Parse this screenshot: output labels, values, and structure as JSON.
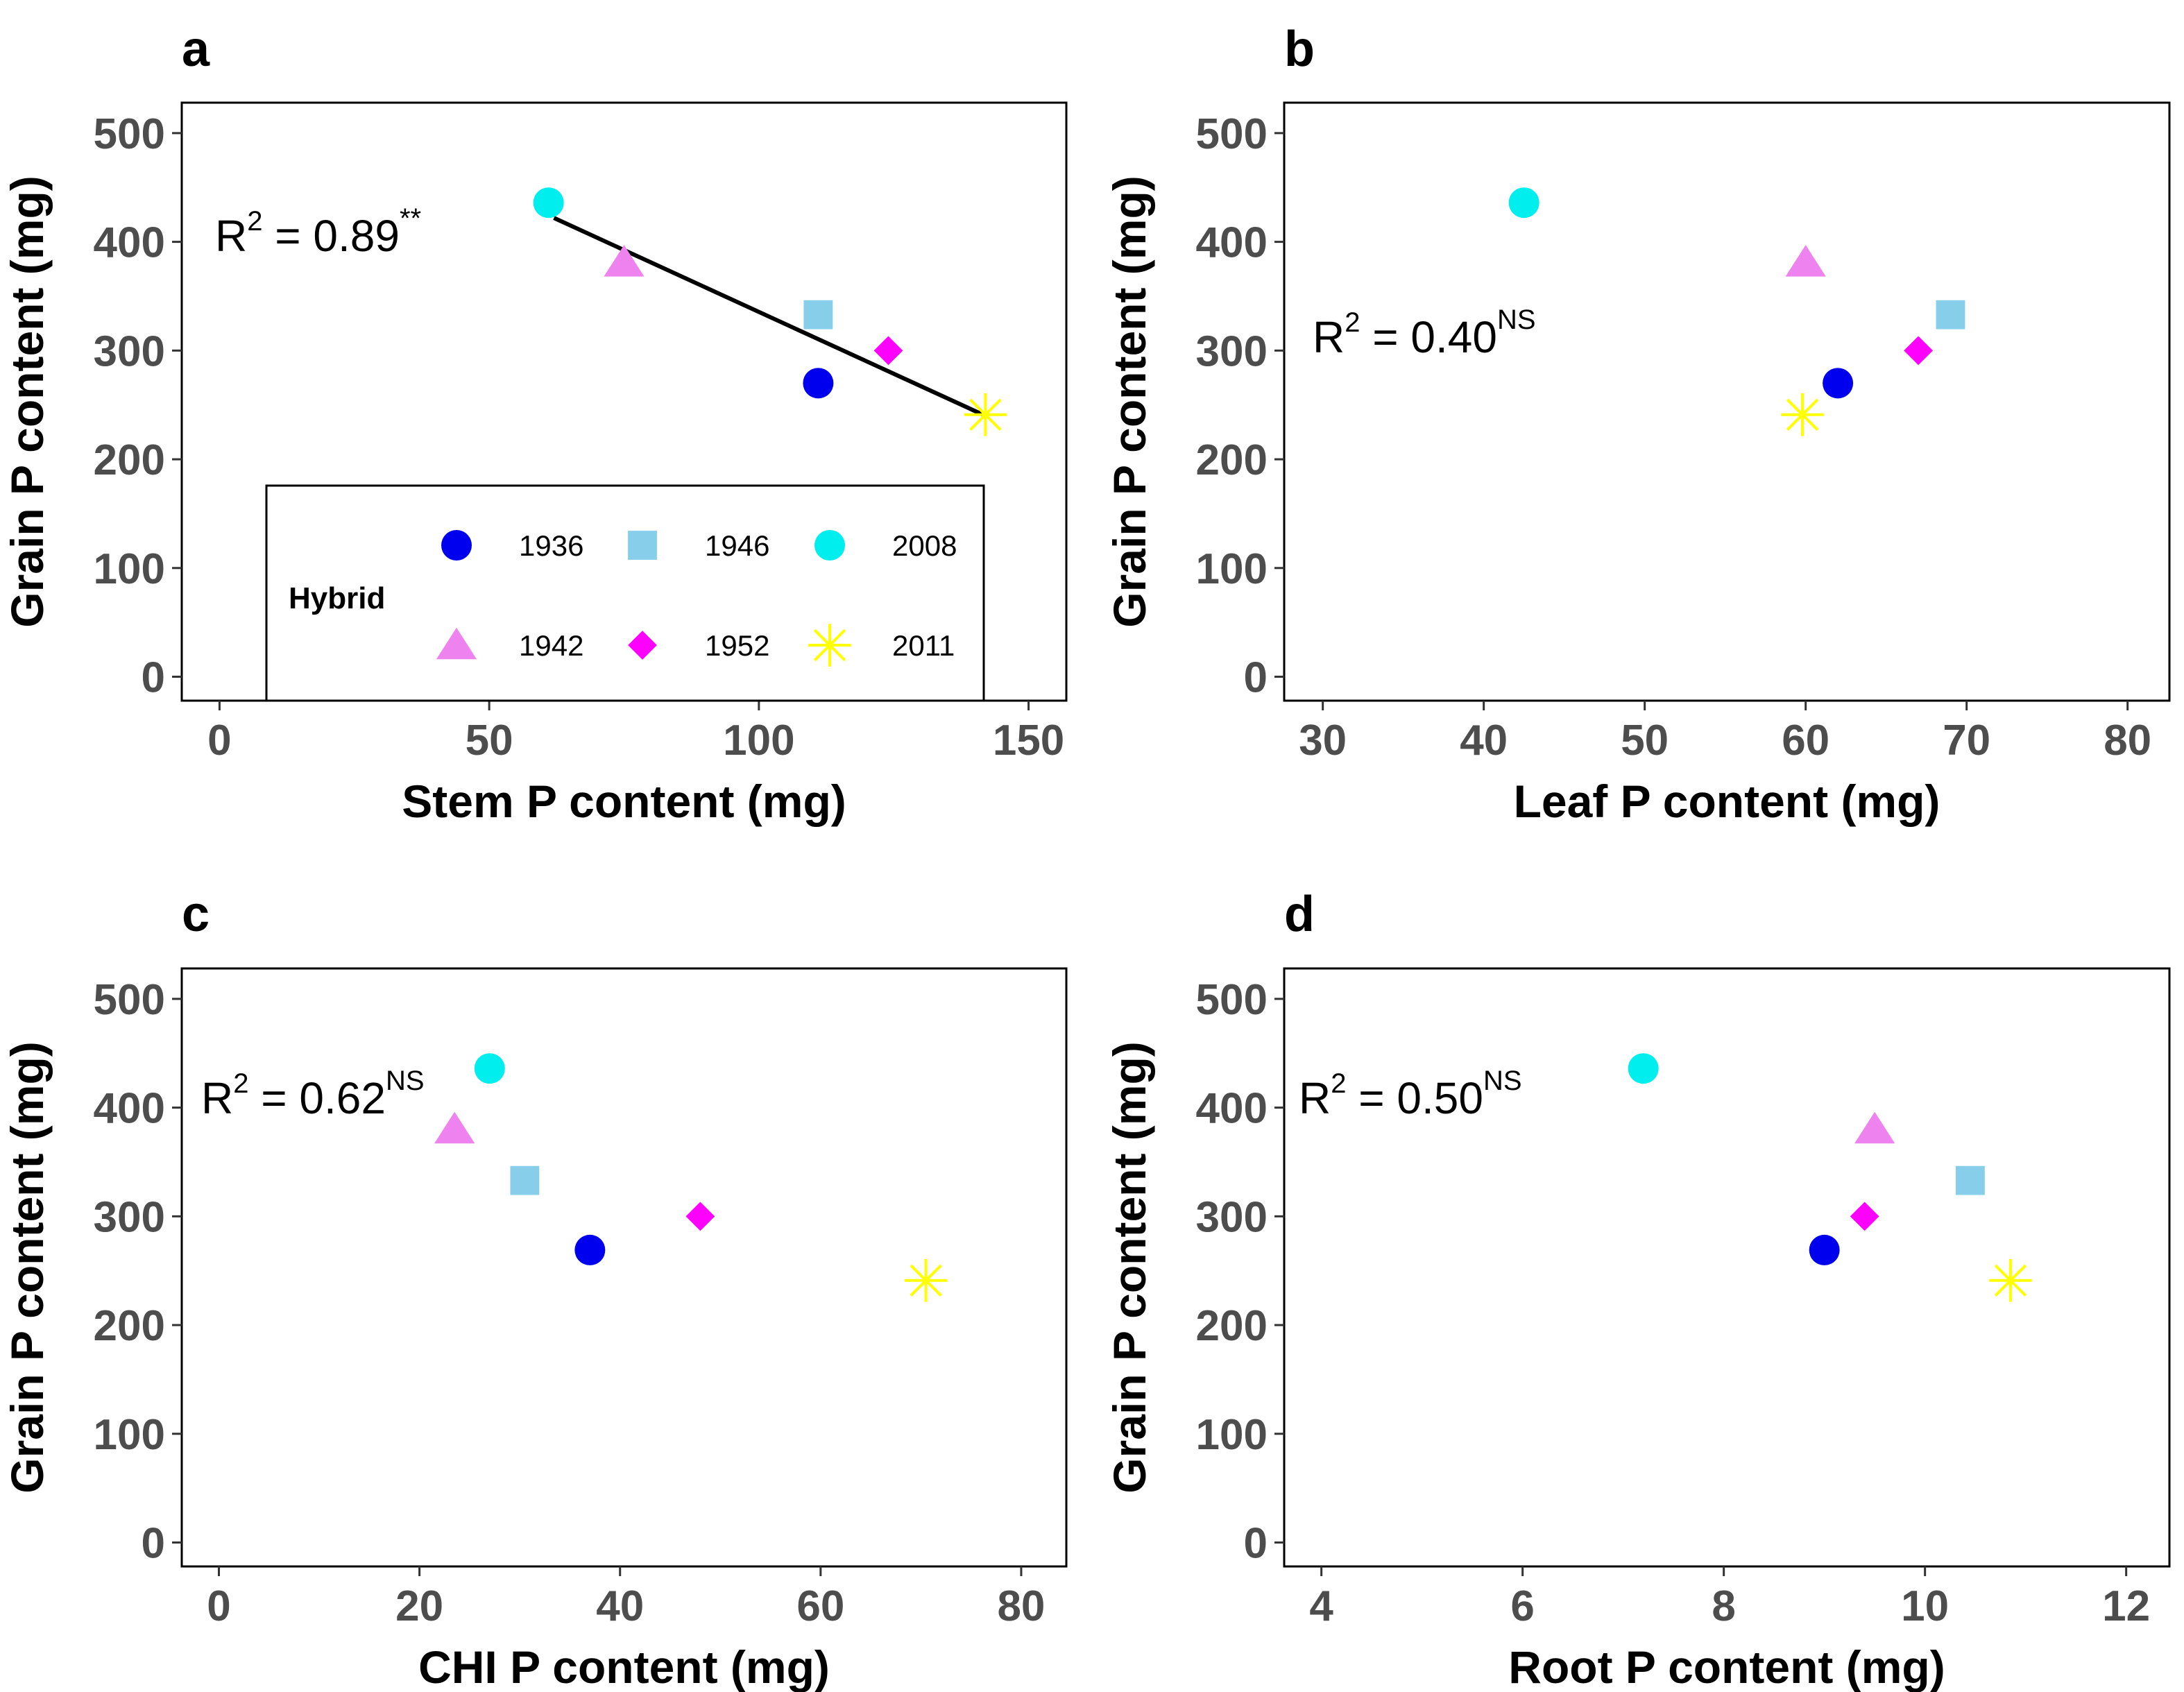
{
  "legend": {
    "title": "Hybrid",
    "entries": [
      {
        "year": "1936",
        "color": "#0000ee",
        "shape": "circle"
      },
      {
        "year": "1946",
        "color": "#87ceeb",
        "shape": "square"
      },
      {
        "year": "2008",
        "color": "#00eeee",
        "shape": "circle"
      },
      {
        "year": "1942",
        "color": "#ee82ee",
        "shape": "triangle"
      },
      {
        "year": "1952",
        "color": "#ff00ff",
        "shape": "diamond"
      },
      {
        "year": "2011",
        "color": "#ffff00",
        "shape": "asterisk"
      }
    ]
  },
  "chart_data": [
    {
      "type": "scatter",
      "panel": "a",
      "xlabel": "Stem P content (mg)",
      "ylabel": "Grain P content (mg)",
      "xlim": [
        -7,
        157
      ],
      "ylim": [
        -22,
        528
      ],
      "xticks": [
        0,
        50,
        100,
        150
      ],
      "yticks": [
        0,
        100,
        200,
        300,
        400,
        500
      ],
      "annotation": {
        "text": "R",
        "sup1": "2",
        "value": " = 0.89",
        "sup2": "**"
      },
      "regression": {
        "x": [
          62,
          142
        ],
        "y": [
          422,
          240
        ]
      },
      "points": [
        {
          "hybrid": "1936",
          "x": 111,
          "y": 270
        },
        {
          "hybrid": "1942",
          "x": 75,
          "y": 381
        },
        {
          "hybrid": "1946",
          "x": 111,
          "y": 333
        },
        {
          "hybrid": "1952",
          "x": 124,
          "y": 300
        },
        {
          "hybrid": "2008",
          "x": 61,
          "y": 436
        },
        {
          "hybrid": "2011",
          "x": 142,
          "y": 241
        }
      ],
      "show_legend": true
    },
    {
      "type": "scatter",
      "panel": "b",
      "xlabel": "Leaf P content (mg)",
      "ylabel": "Grain P content (mg)",
      "xlim": [
        27.6,
        82.6
      ],
      "ylim": [
        -22,
        528
      ],
      "xticks": [
        30,
        40,
        50,
        60,
        70,
        80
      ],
      "yticks": [
        0,
        100,
        200,
        300,
        400,
        500
      ],
      "annotation": {
        "text": "R",
        "sup1": "2",
        "value": " = 0.40",
        "sup2": "NS"
      },
      "points": [
        {
          "hybrid": "1936",
          "x": 62,
          "y": 270
        },
        {
          "hybrid": "1942",
          "x": 60,
          "y": 381
        },
        {
          "hybrid": "1946",
          "x": 69,
          "y": 333
        },
        {
          "hybrid": "1952",
          "x": 67,
          "y": 300
        },
        {
          "hybrid": "2008",
          "x": 42.5,
          "y": 436
        },
        {
          "hybrid": "2011",
          "x": 59.8,
          "y": 241
        }
      ]
    },
    {
      "type": "scatter",
      "panel": "c",
      "xlabel": "CHI P content (mg)",
      "ylabel": "Grain P content (mg)",
      "xlim": [
        -3.7,
        84.5
      ],
      "ylim": [
        -22,
        528
      ],
      "xticks": [
        0,
        20,
        40,
        60,
        80
      ],
      "yticks": [
        0,
        100,
        200,
        300,
        400,
        500
      ],
      "annotation": {
        "text": "R",
        "sup1": "2",
        "value": " = 0.62",
        "sup2": "NS"
      },
      "points": [
        {
          "hybrid": "1936",
          "x": 37,
          "y": 269
        },
        {
          "hybrid": "1942",
          "x": 23.5,
          "y": 380
        },
        {
          "hybrid": "1946",
          "x": 30.5,
          "y": 333
        },
        {
          "hybrid": "1952",
          "x": 48,
          "y": 300
        },
        {
          "hybrid": "2008",
          "x": 27,
          "y": 436
        },
        {
          "hybrid": "2011",
          "x": 70.5,
          "y": 241
        }
      ]
    },
    {
      "type": "scatter",
      "panel": "d",
      "xlabel": "Root P content (mg)",
      "ylabel": "Grain P content (mg)",
      "xlim": [
        3.63,
        12.43
      ],
      "ylim": [
        -22,
        528
      ],
      "xticks": [
        4,
        6,
        8,
        10,
        12
      ],
      "yticks": [
        0,
        100,
        200,
        300,
        400,
        500
      ],
      "annotation": {
        "text": "R",
        "sup1": "2",
        "value": " = 0.50",
        "sup2": "NS"
      },
      "points": [
        {
          "hybrid": "1936",
          "x": 9.0,
          "y": 269
        },
        {
          "hybrid": "1942",
          "x": 9.5,
          "y": 380
        },
        {
          "hybrid": "1946",
          "x": 10.45,
          "y": 333
        },
        {
          "hybrid": "1952",
          "x": 9.4,
          "y": 300
        },
        {
          "hybrid": "2008",
          "x": 7.2,
          "y": 436
        },
        {
          "hybrid": "2011",
          "x": 10.85,
          "y": 241
        }
      ]
    }
  ]
}
